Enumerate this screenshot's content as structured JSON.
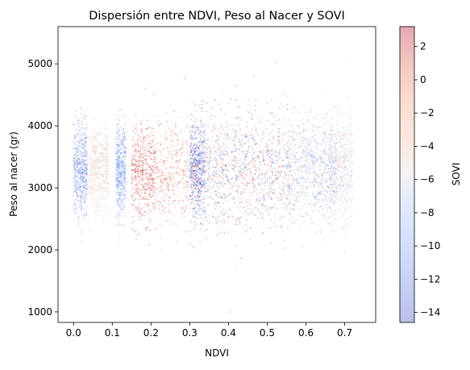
{
  "chart_data": {
    "type": "scatter",
    "title": "Dispersión entre NDVI, Peso al Nacer y SOVI",
    "xlabel": "NDVI",
    "ylabel": "Peso al nacer (gr)",
    "xlim": [
      -0.04,
      0.78
    ],
    "ylim": [
      830,
      5600
    ],
    "x_ticks": [
      "0.0",
      "0.1",
      "0.2",
      "0.3",
      "0.4",
      "0.5",
      "0.6",
      "0.7"
    ],
    "x_tick_values": [
      0.0,
      0.1,
      0.2,
      0.3,
      0.4,
      0.5,
      0.6,
      0.7
    ],
    "y_ticks": [
      "1000",
      "2000",
      "3000",
      "4000",
      "5000"
    ],
    "y_tick_values": [
      1000,
      2000,
      3000,
      4000,
      5000
    ],
    "grid": false,
    "colormap": "coolwarm",
    "point_alpha": 0.3,
    "colorbar": {
      "label": "SOVI",
      "range": [
        -14.6,
        3.2
      ],
      "ticks": [
        "2",
        "0",
        "−2",
        "−4",
        "−6",
        "−8",
        "−10",
        "−12",
        "−14"
      ],
      "tick_values": [
        2,
        0,
        -2,
        -4,
        -6,
        -8,
        -10,
        -12,
        -14
      ]
    },
    "clusters": [
      {
        "ndvi": [
          0.0,
          0.035
        ],
        "peso_center": 3300,
        "peso_spread": 350,
        "sovi": -11.5
      },
      {
        "ndvi": [
          0.04,
          0.09
        ],
        "peso_center": 3300,
        "peso_spread": 350,
        "sovi": -4.5
      },
      {
        "ndvi": [
          0.11,
          0.135
        ],
        "peso_center": 3300,
        "peso_spread": 350,
        "sovi": -10.5
      },
      {
        "ndvi": [
          0.15,
          0.21
        ],
        "peso_center": 3250,
        "peso_spread": 380,
        "sovi": 1.5
      },
      {
        "ndvi": [
          0.21,
          0.33
        ],
        "peso_center": 3250,
        "peso_spread": 400,
        "sovi": 0.5
      },
      {
        "ndvi": [
          0.3,
          0.34
        ],
        "peso_center": 3300,
        "peso_spread": 400,
        "sovi": -13.5
      },
      {
        "ndvi": [
          0.34,
          0.56
        ],
        "peso_center": 3300,
        "peso_spread": 480,
        "sovi": -13.0
      },
      {
        "ndvi": [
          0.34,
          0.56
        ],
        "peso_center": 3300,
        "peso_spread": 450,
        "sovi": 0.5
      },
      {
        "ndvi": [
          0.55,
          0.68
        ],
        "peso_center": 3300,
        "peso_spread": 430,
        "sovi": -10.5
      },
      {
        "ndvi": [
          0.55,
          0.72
        ],
        "peso_center": 3300,
        "peso_spread": 420,
        "sovi": -4.0
      },
      {
        "ndvi": [
          0.66,
          0.72
        ],
        "peso_center": 3300,
        "peso_spread": 400,
        "sovi": -6.5
      }
    ]
  }
}
